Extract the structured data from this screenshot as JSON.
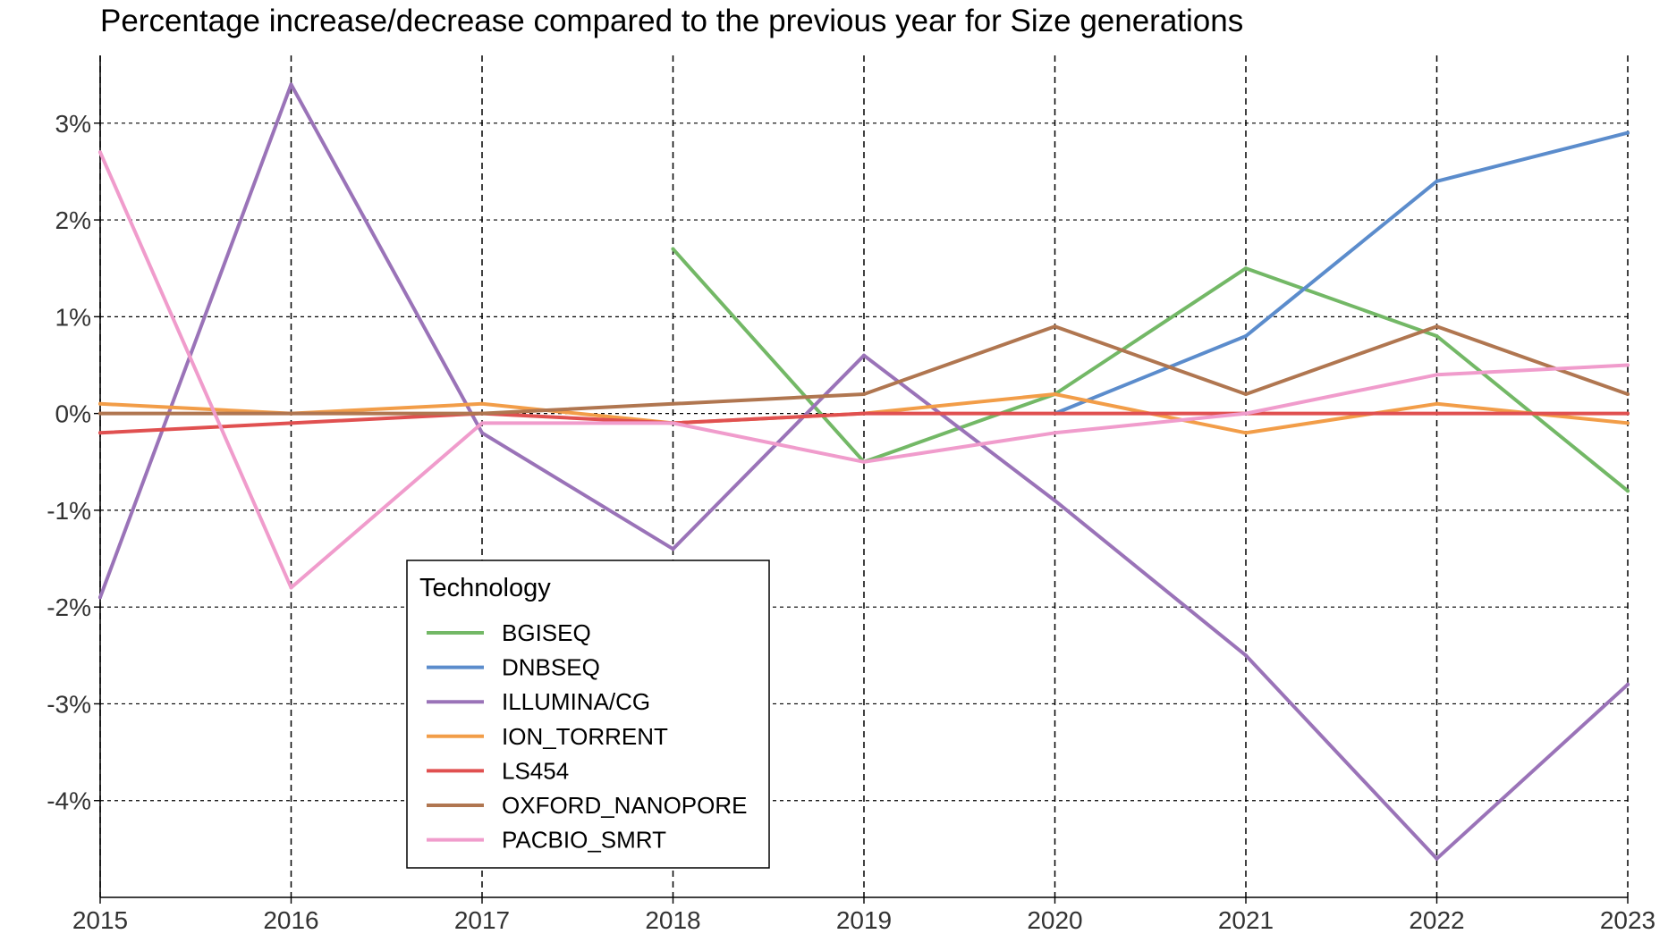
{
  "chart_data": {
    "type": "line",
    "title": "Percentage increase/decrease compared to the previous year for Size generations",
    "xlabel": "",
    "ylabel": "",
    "x": [
      2015,
      2016,
      2017,
      2018,
      2019,
      2020,
      2021,
      2022,
      2023
    ],
    "xlim": [
      2015,
      2023
    ],
    "ylim": [
      -5.0,
      3.7
    ],
    "y_ticks": [
      3,
      2,
      1,
      0,
      -1,
      -2,
      -3,
      -4
    ],
    "y_tick_labels": [
      "3%",
      "2%",
      "1%",
      "0%",
      "-1%",
      "-2%",
      "-3%",
      "-4%"
    ],
    "x_tick_labels": [
      "2015",
      "2016",
      "2017",
      "2018",
      "2019",
      "2020",
      "2021",
      "2022",
      "2023"
    ],
    "grid": true,
    "legend": {
      "title": "Technology",
      "position": "inside-bottom-left"
    },
    "series": [
      {
        "name": "BGISEQ",
        "color": "#73b866",
        "x": [
          2018,
          2019,
          2020,
          2021,
          2022,
          2023
        ],
        "values": [
          1.7,
          -0.5,
          0.2,
          1.5,
          0.8,
          -0.8
        ]
      },
      {
        "name": "DNBSEQ",
        "color": "#5b8ccc",
        "x": [
          2020,
          2021,
          2022,
          2023
        ],
        "values": [
          0.0,
          0.8,
          2.4,
          2.9
        ]
      },
      {
        "name": "ILLUMINA/CG",
        "color": "#9a73b8",
        "x": [
          2015,
          2016,
          2017,
          2018,
          2019,
          2020,
          2021,
          2022,
          2023
        ],
        "values": [
          -1.9,
          3.4,
          -0.2,
          -1.4,
          0.6,
          -0.9,
          -2.5,
          -4.6,
          -2.8
        ]
      },
      {
        "name": "ION_TORRENT",
        "color": "#f29d48",
        "x": [
          2015,
          2016,
          2017,
          2018,
          2019,
          2020,
          2021,
          2022,
          2023
        ],
        "values": [
          0.1,
          0.0,
          0.1,
          -0.1,
          0.0,
          0.2,
          -0.2,
          0.1,
          -0.1
        ]
      },
      {
        "name": "LS454",
        "color": "#e05050",
        "x": [
          2015,
          2016,
          2017,
          2018,
          2019,
          2020,
          2021,
          2022,
          2023
        ],
        "values": [
          -0.2,
          -0.1,
          0.0,
          -0.1,
          0.0,
          0.0,
          0.0,
          0.0,
          0.0
        ]
      },
      {
        "name": "OXFORD_NANOPORE",
        "color": "#b07650",
        "x": [
          2015,
          2016,
          2017,
          2018,
          2019,
          2020,
          2021,
          2022,
          2023
        ],
        "values": [
          0.0,
          0.0,
          0.0,
          0.1,
          0.2,
          0.9,
          0.2,
          0.9,
          0.2
        ]
      },
      {
        "name": "PACBIO_SMRT",
        "color": "#f09ccc",
        "x": [
          2015,
          2016,
          2017,
          2018,
          2019,
          2020,
          2021,
          2022,
          2023
        ],
        "values": [
          2.7,
          -1.8,
          -0.1,
          -0.1,
          -0.5,
          -0.2,
          0.0,
          0.4,
          0.5
        ]
      }
    ]
  }
}
